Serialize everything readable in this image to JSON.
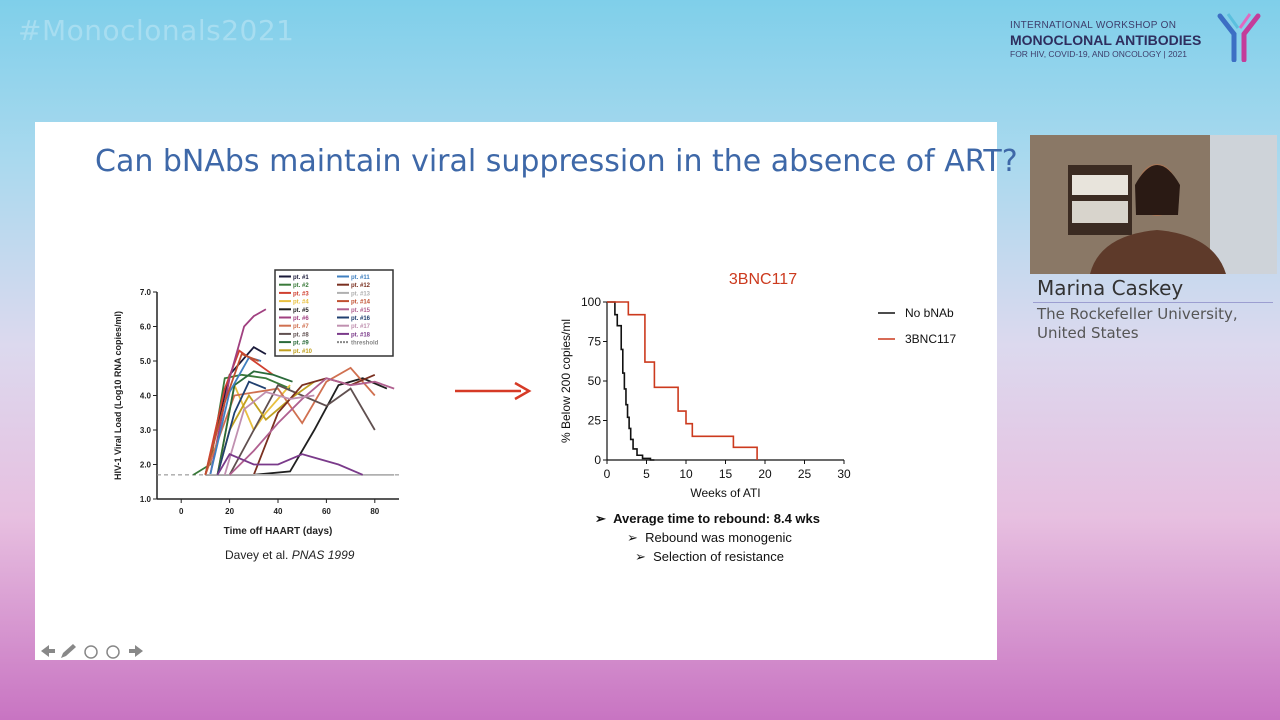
{
  "header": {
    "hashtag": "#Monoclonals2021",
    "logo_line1": "INTERNATIONAL WORKSHOP ON",
    "logo_line2": "MONOCLONAL ANTIBODIES",
    "logo_line3": "FOR HIV, COVID-19, AND ONCOLOGY | 2021"
  },
  "slide": {
    "title": "Can bNAbs maintain viral suppression in the absence of ART?",
    "citation_authors": "Davey et al.",
    "citation_journal": "PNAS 1999",
    "bullets": [
      "Average time to rebound: 8.4 wks",
      "Rebound was monogenic",
      "Selection of resistance"
    ],
    "bullet_marker": "➢",
    "nav_icons": [
      "prev-arrow-icon",
      "pen-icon",
      "slides-icon",
      "more-icon",
      "next-arrow-icon"
    ]
  },
  "speaker": {
    "name": "Marina Caskey",
    "affiliation_line1": "The Rockefeller University,",
    "affiliation_line2": "United States"
  },
  "chart_data": [
    {
      "type": "line",
      "xlabel": "Time off HAART (days)",
      "ylabel": "HIV-1 Viral Load (Log10 RNA copies/ml)",
      "x_ticks": [
        "0",
        "20",
        "40",
        "60",
        "80"
      ],
      "y_ticks": [
        "1.0",
        "2.0",
        "3.0",
        "4.0",
        "5.0",
        "6.0",
        "7.0"
      ],
      "xlim": [
        -10,
        90
      ],
      "ylim": [
        1,
        7
      ],
      "threshold": 1.7,
      "legend": [
        "pt. #1",
        "pt. #2",
        "pt. #3",
        "pt. #4",
        "pt. #5",
        "pt. #6",
        "pt. #7",
        "pt. #8",
        "pt. #9",
        "pt. #10",
        "pt. #11",
        "pt. #12",
        "pt. #13",
        "pt. #14",
        "pt. #15",
        "pt. #16",
        "pt. #17",
        "pt. #18",
        "threshold"
      ],
      "legend_colors": [
        "#1a1a3a",
        "#3a7a3a",
        "#d04030",
        "#e8c040",
        "#202020",
        "#a04080",
        "#d07050",
        "#605050",
        "#2a6a3a",
        "#c0a020",
        "#4080c0",
        "#7a3020",
        "#b0b0b0",
        "#c05030",
        "#b06090",
        "#204070",
        "#c090b0",
        "#7a3a8a",
        "#888888"
      ],
      "series": [
        {
          "x": [
            10,
            20,
            30,
            35
          ],
          "y": [
            1.7,
            4.6,
            5.4,
            5.2
          ]
        },
        {
          "x": [
            5,
            12,
            18,
            25,
            35,
            45
          ],
          "y": [
            1.7,
            2.0,
            4.5,
            4.6,
            4.5,
            4.2
          ]
        },
        {
          "x": [
            10,
            18,
            24,
            30,
            38
          ],
          "y": [
            1.7,
            4.2,
            5.3,
            5.0,
            4.6
          ]
        },
        {
          "x": [
            15,
            22,
            30,
            35,
            45
          ],
          "y": [
            1.7,
            4.3,
            3.0,
            3.5,
            4.3
          ]
        },
        {
          "x": [
            10,
            30,
            45,
            55,
            65,
            75,
            85
          ],
          "y": [
            1.7,
            1.7,
            1.8,
            3.0,
            4.3,
            4.5,
            4.2
          ]
        },
        {
          "x": [
            12,
            20,
            26,
            30,
            35
          ],
          "y": [
            1.7,
            4.5,
            6.0,
            6.3,
            6.5
          ]
        },
        {
          "x": [
            10,
            22,
            40,
            50,
            60,
            70,
            80
          ],
          "y": [
            1.7,
            4.0,
            4.2,
            3.2,
            4.4,
            4.8,
            4.0
          ]
        },
        {
          "x": [
            20,
            30,
            40,
            50,
            60,
            70,
            80
          ],
          "y": [
            1.7,
            3.0,
            4.3,
            4.0,
            3.7,
            4.2,
            3.0
          ]
        },
        {
          "x": [
            15,
            22,
            30,
            38,
            46
          ],
          "y": [
            1.7,
            4.3,
            4.7,
            4.6,
            4.4
          ]
        },
        {
          "x": [
            15,
            20,
            28,
            35,
            45,
            55
          ],
          "y": [
            1.7,
            3.0,
            4.0,
            3.3,
            3.9,
            4.4
          ]
        },
        {
          "x": [
            12,
            20,
            28,
            33
          ],
          "y": [
            1.7,
            4.1,
            5.1,
            5.0
          ]
        },
        {
          "x": [
            30,
            40,
            50,
            60,
            70,
            80
          ],
          "y": [
            1.7,
            3.5,
            4.3,
            4.5,
            4.3,
            4.6
          ]
        },
        {
          "x": [
            10,
            30,
            50,
            70,
            88
          ],
          "y": [
            1.7,
            1.7,
            1.7,
            1.7,
            1.7
          ]
        },
        {
          "x": [
            10,
            18,
            25,
            32
          ],
          "y": [
            1.7,
            3.8,
            5.2,
            5.0
          ]
        },
        {
          "x": [
            20,
            30,
            40,
            50,
            60,
            70,
            80,
            88
          ],
          "y": [
            1.7,
            2.4,
            3.2,
            3.9,
            4.5,
            4.3,
            4.4,
            4.2
          ]
        },
        {
          "x": [
            15,
            22,
            28,
            35
          ],
          "y": [
            1.7,
            3.5,
            4.4,
            4.2
          ]
        },
        {
          "x": [
            18,
            26,
            35,
            45,
            55
          ],
          "y": [
            1.7,
            3.6,
            4.1,
            3.9,
            4.0
          ]
        },
        {
          "x": [
            15,
            20,
            30,
            40,
            50,
            55,
            65,
            75
          ],
          "y": [
            1.7,
            2.3,
            2.0,
            2.0,
            2.3,
            2.2,
            2.0,
            1.7
          ]
        }
      ]
    },
    {
      "type": "line",
      "title": "3BNC117",
      "xlabel": "Weeks of ATI",
      "ylabel": "% Below 200 copies/ml",
      "xlim": [
        0,
        30
      ],
      "ylim": [
        0,
        100
      ],
      "x_ticks": [
        0,
        5,
        10,
        15,
        20,
        25,
        30
      ],
      "y_ticks": [
        0,
        25,
        50,
        75,
        100
      ],
      "legend_position": "right",
      "series": [
        {
          "name": "No bNAb",
          "color": "#111111",
          "x": [
            0,
            1,
            1.3,
            1.8,
            2.0,
            2.2,
            2.4,
            2.6,
            2.8,
            3.0,
            3.3,
            3.8,
            4.5,
            5.5,
            6
          ],
          "y": [
            100,
            92,
            85,
            70,
            55,
            45,
            35,
            27,
            20,
            13,
            7,
            3,
            1,
            0,
            0
          ]
        },
        {
          "name": "3BNC117",
          "color": "#cc3a1e",
          "x": [
            0,
            2.7,
            4.8,
            6.0,
            9.0,
            10.0,
            10.8,
            16.0,
            19.0
          ],
          "y": [
            100,
            92,
            62,
            46,
            31,
            23,
            15,
            8,
            0
          ]
        }
      ]
    }
  ]
}
